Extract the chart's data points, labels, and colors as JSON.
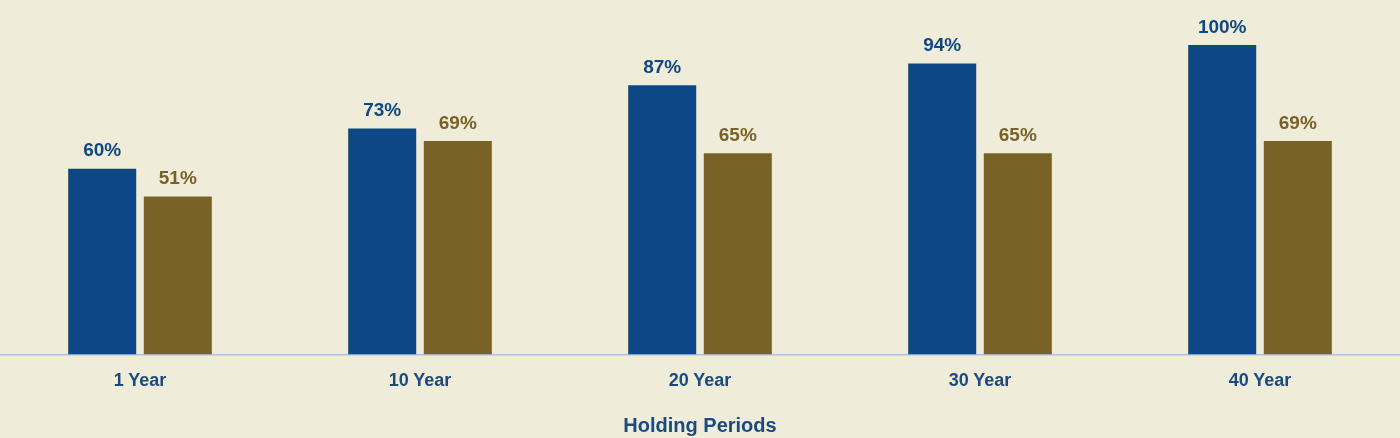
{
  "chart_data": {
    "type": "bar",
    "xlabel": "Holding Periods",
    "categories": [
      "1 Year",
      "10 Year",
      "20 Year",
      "30 Year",
      "40 Year"
    ],
    "series": [
      {
        "color": "#0d4884",
        "values": [
          60,
          73,
          87,
          94,
          100
        ],
        "value_labels": [
          "60%",
          "73%",
          "87%",
          "94%",
          "100%"
        ]
      },
      {
        "color": "#786226",
        "values": [
          51,
          69,
          65,
          65,
          69
        ],
        "value_labels": [
          "51%",
          "69%",
          "65%",
          "65%",
          "69%"
        ]
      }
    ],
    "grid": false,
    "legend": false,
    "tick_labels": "x"
  }
}
